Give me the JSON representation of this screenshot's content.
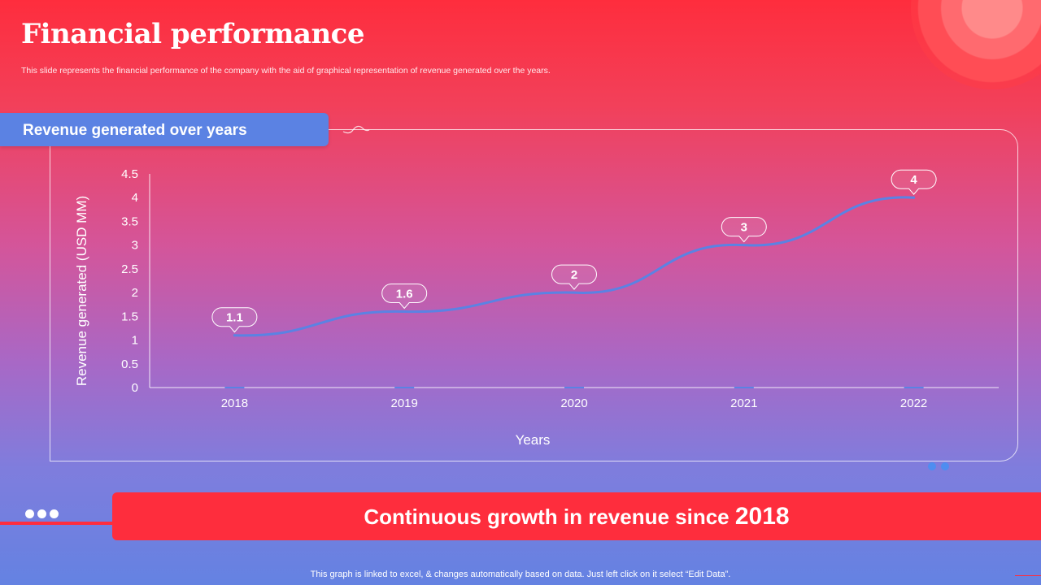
{
  "slide": {
    "title": "Financial performance",
    "subtitle": "This slide represents the financial performance of the company with the aid of graphical representation of revenue generated over the years.",
    "chart_header": "Revenue generated over years",
    "banner_text": "Continuous growth in revenue since",
    "banner_year": "2018",
    "footnote": "This graph is linked to excel, & changes automatically based on data. Just left click on it select “Edit Data”."
  },
  "colors": {
    "red": "#fe2d3d",
    "blue": "#5b82e3",
    "line": "#5b82e3"
  },
  "chart_data": {
    "type": "line",
    "categories": [
      "2018",
      "2019",
      "2020",
      "2021",
      "2022"
    ],
    "series": [
      {
        "name": "Revenue generated (USD MM)",
        "values": [
          1.1,
          1.6,
          2,
          3,
          4
        ]
      }
    ],
    "data_labels": [
      "1.1",
      "1.6",
      "2",
      "3",
      "4"
    ],
    "xlabel": "Years",
    "ylabel": "Revenue generated (USD MM)",
    "ylim": [
      0,
      4.5
    ],
    "yticks": [
      "0",
      "0.5",
      "1",
      "1.5",
      "2",
      "2.5",
      "3",
      "3.5",
      "4",
      "4.5"
    ],
    "ytick_values": [
      0,
      0.5,
      1,
      1.5,
      2,
      2.5,
      3,
      3.5,
      4,
      4.5
    ],
    "grid": false,
    "legend": "none"
  }
}
